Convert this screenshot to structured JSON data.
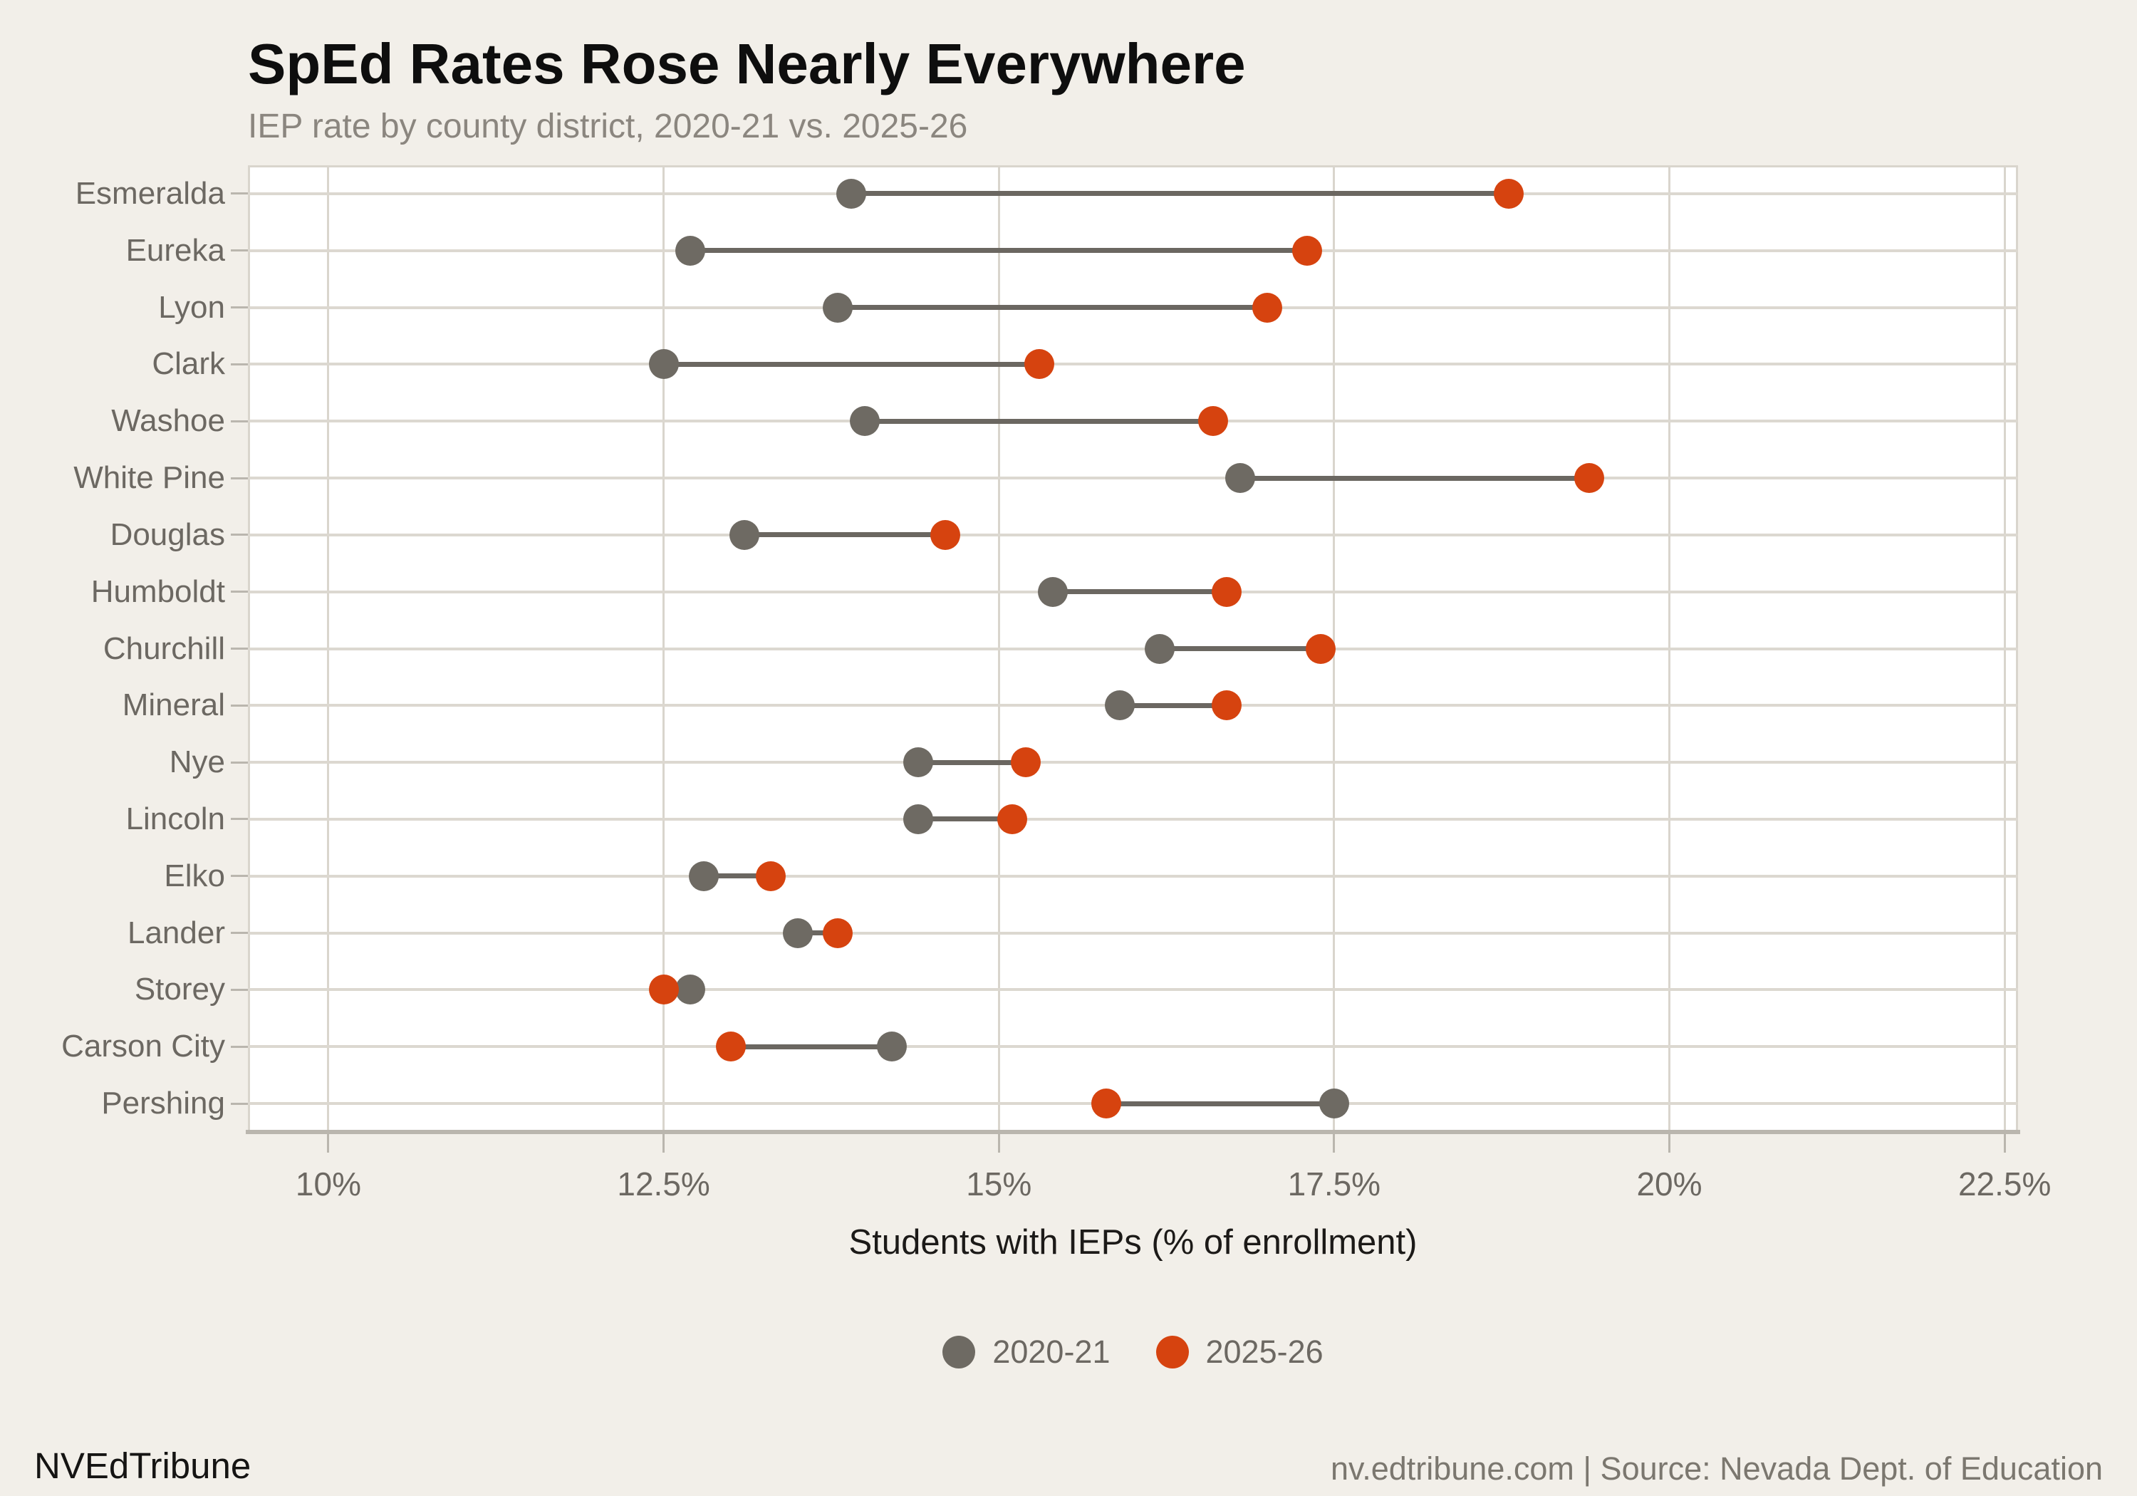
{
  "title": "SpEd Rates Rose Nearly Everywhere",
  "subtitle": "IEP rate by county district, 2020-21 vs. 2025-26",
  "footer": {
    "brand": "NVEdTribune",
    "source": "nv.edtribune.com | Source: Nevada Dept. of Education"
  },
  "colors": {
    "background": "#f2efe9",
    "plot_background": "#ffffff",
    "gridline": "#d9d5cd",
    "row_line": "#dcd8d0",
    "connector": "#6b6761",
    "axis_line": "#bab6ae",
    "tick_label": "#6c6862",
    "series_2020": "#6e6a63",
    "series_2025": "#d6430f"
  },
  "chart_data": {
    "type": "scatter",
    "variant": "dumbbell",
    "title": "SpEd Rates Rose Nearly Everywhere",
    "subtitle": "IEP rate by county district, 2020-21 vs. 2025-26",
    "xlabel": "Students with IEPs (% of enrollment)",
    "ylabel": "",
    "xlim": [
      9.4,
      22.6
    ],
    "grid": "vertical",
    "legend_position": "bottom",
    "x_tick_values": [
      10,
      12.5,
      15,
      17.5,
      20,
      22.5
    ],
    "x_tick_labels": [
      "10%",
      "12.5%",
      "15%",
      "17.5%",
      "20%",
      "22.5%"
    ],
    "categories": [
      "Esmeralda",
      "Eureka",
      "Lyon",
      "Clark",
      "Washoe",
      "White Pine",
      "Douglas",
      "Humboldt",
      "Churchill",
      "Mineral",
      "Nye",
      "Lincoln",
      "Elko",
      "Lander",
      "Storey",
      "Carson City",
      "Pershing"
    ],
    "series": [
      {
        "name": "2020-21",
        "color": "#6e6a63",
        "values": [
          13.9,
          12.7,
          13.8,
          12.5,
          14.0,
          16.8,
          13.1,
          15.4,
          16.2,
          15.9,
          14.4,
          14.4,
          12.8,
          13.5,
          12.7,
          14.2,
          17.5
        ]
      },
      {
        "name": "2025-26",
        "color": "#d6430f",
        "values": [
          18.8,
          17.3,
          17.0,
          15.3,
          16.6,
          19.4,
          14.6,
          16.7,
          17.4,
          16.7,
          15.2,
          15.1,
          13.3,
          13.8,
          12.5,
          13.0,
          15.8
        ]
      }
    ]
  }
}
